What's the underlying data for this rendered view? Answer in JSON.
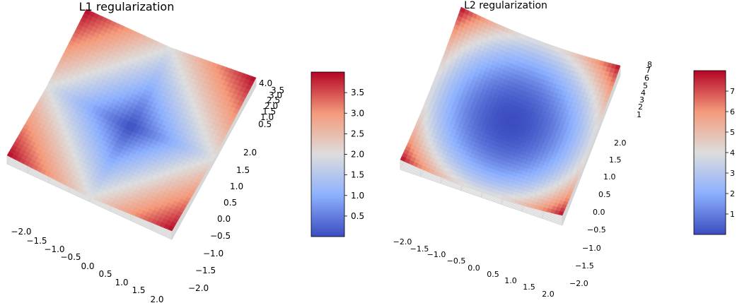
{
  "chart_data": [
    {
      "type": "surface",
      "title": "L1 regularization",
      "function": "|x| + |y|",
      "x_ticks": [
        "−2.0",
        "−1.5",
        "−1.0",
        "−0.5",
        "0.0",
        "0.5",
        "1.0",
        "1.5",
        "2.0"
      ],
      "y_ticks": [
        "−2.0",
        "−1.5",
        "−1.0",
        "−0.5",
        "0.0",
        "0.5",
        "1.0",
        "1.5",
        "2.0"
      ],
      "z_ticks": [
        "0.5",
        "1.0",
        "1.5",
        "2.0",
        "2.5",
        "3.0",
        "3.5",
        "4.0"
      ],
      "xlim": [
        -2,
        2
      ],
      "ylim": [
        -2,
        2
      ],
      "zlim": [
        0,
        4
      ],
      "colormap": "coolwarm",
      "colorbar": {
        "ticks": [
          "0.5",
          "1.0",
          "1.5",
          "2.0",
          "2.5",
          "3.0",
          "3.5"
        ],
        "range": [
          0,
          4
        ]
      }
    },
    {
      "type": "surface",
      "title": "L2 regularization",
      "function": "x^2 + y^2",
      "x_ticks": [
        "−2.0",
        "−1.5",
        "−1.0",
        "−0.5",
        "0.0",
        "0.5",
        "1.0",
        "1.5",
        "2.0"
      ],
      "y_ticks": [
        "−2.0",
        "−1.5",
        "−1.0",
        "−0.5",
        "0.0",
        "0.5",
        "1.0",
        "1.5",
        "2.0"
      ],
      "z_ticks": [
        "1",
        "2",
        "3",
        "4",
        "5",
        "6",
        "7",
        "8"
      ],
      "xlim": [
        -2,
        2
      ],
      "ylim": [
        -2,
        2
      ],
      "zlim": [
        0,
        8
      ],
      "colormap": "coolwarm",
      "colorbar": {
        "ticks": [
          "1",
          "2",
          "3",
          "4",
          "5",
          "6",
          "7"
        ],
        "range": [
          0,
          8
        ]
      }
    }
  ],
  "colors": {
    "cool_end": "#3b4cc0",
    "mid": "#dddddd",
    "warm_end": "#b40426",
    "pane": "#f2f2f2",
    "grid": "#cccccc"
  }
}
